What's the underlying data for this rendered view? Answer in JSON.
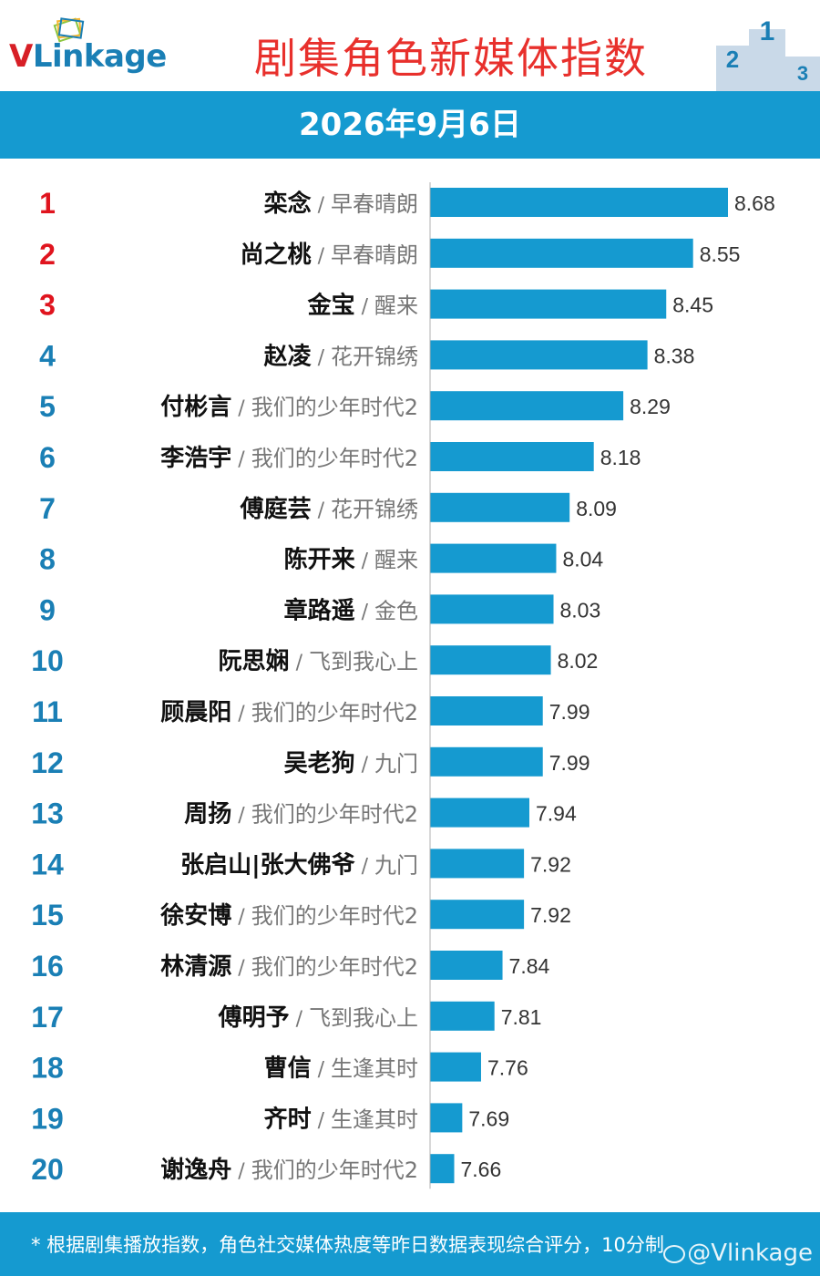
{
  "brand": {
    "logo_v": "V",
    "logo_rest": "Linkage"
  },
  "header": {
    "title": "剧集角色新媒体指数",
    "date": "2026年9月6日"
  },
  "colors": {
    "bar": "#159ad0",
    "rank_top3": "#e0141e",
    "rank_rest": "#1a7fb5",
    "title": "#e8302c"
  },
  "footer": {
    "note": "* 根据剧集播放指数，角色社交媒体热度等昨日数据表现综合评分，10分制",
    "watermark": "@Vlinkage"
  },
  "chart_data": {
    "type": "bar",
    "orientation": "horizontal",
    "title": "剧集角色新媒体指数",
    "subtitle": "2026年9月6日",
    "categories": [
      {
        "rank": "1",
        "name": "栾念",
        "show": "早春晴朗"
      },
      {
        "rank": "2",
        "name": "尚之桃",
        "show": "早春晴朗"
      },
      {
        "rank": "3",
        "name": "金宝",
        "show": "醒来"
      },
      {
        "rank": "4",
        "name": "赵凌",
        "show": "花开锦绣"
      },
      {
        "rank": "5",
        "name": "付彬言",
        "show": "我们的少年时代2"
      },
      {
        "rank": "6",
        "name": "李浩宇",
        "show": "我们的少年时代2"
      },
      {
        "rank": "7",
        "name": "傅庭芸",
        "show": "花开锦绣"
      },
      {
        "rank": "8",
        "name": "陈开来",
        "show": "醒来"
      },
      {
        "rank": "9",
        "name": "章路遥",
        "show": "金色"
      },
      {
        "rank": "10",
        "name": "阮思娴",
        "show": "飞到我心上"
      },
      {
        "rank": "11",
        "name": "顾晨阳",
        "show": "我们的少年时代2"
      },
      {
        "rank": "12",
        "name": "吴老狗",
        "show": "九门"
      },
      {
        "rank": "13",
        "name": "周扬",
        "show": "我们的少年时代2"
      },
      {
        "rank": "14",
        "name": "张启山|张大佛爷",
        "show": "九门"
      },
      {
        "rank": "15",
        "name": "徐安博",
        "show": "我们的少年时代2"
      },
      {
        "rank": "16",
        "name": "林清源",
        "show": "我们的少年时代2"
      },
      {
        "rank": "17",
        "name": "傅明予",
        "show": "飞到我心上"
      },
      {
        "rank": "18",
        "name": "曹信",
        "show": "生逢其时"
      },
      {
        "rank": "19",
        "name": "齐时",
        "show": "生逢其时"
      },
      {
        "rank": "20",
        "name": "谢逸舟",
        "show": "我们的少年时代2"
      }
    ],
    "values": [
      8.68,
      8.55,
      8.45,
      8.38,
      8.29,
      8.18,
      8.09,
      8.04,
      8.03,
      8.02,
      7.99,
      7.99,
      7.94,
      7.92,
      7.92,
      7.84,
      7.81,
      7.76,
      7.69,
      7.66
    ],
    "labels": [
      "8.68",
      "8.55",
      "8.45",
      "8.38",
      "8.29",
      "8.18",
      "8.09",
      "8.04",
      "8.03",
      "8.02",
      "7.99",
      "7.99",
      "7.94",
      "7.92",
      "7.92",
      "7.84",
      "7.81",
      "7.76",
      "7.69",
      "7.66"
    ],
    "xlim": [
      7.57,
      8.68
    ],
    "separator": "/",
    "grid": false,
    "legend": "none"
  }
}
